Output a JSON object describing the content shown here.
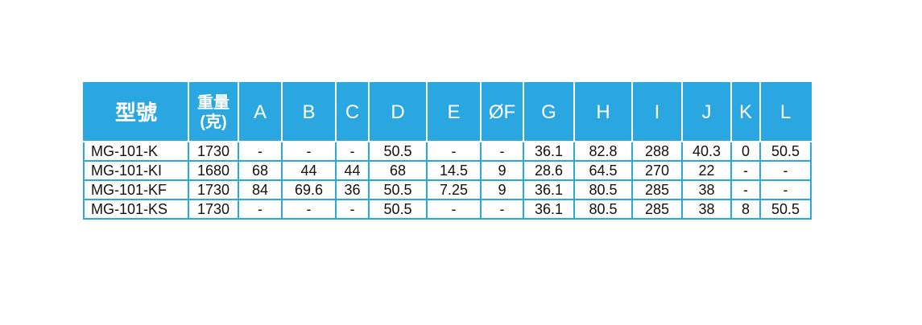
{
  "table": {
    "header": [
      "型號",
      "重量\n(克)",
      "A",
      "B",
      "C",
      "D",
      "E",
      "ØF",
      "G",
      "H",
      "I",
      "J",
      "K",
      "L"
    ],
    "rows": [
      [
        "MG-101-K",
        "1730",
        "-",
        "-",
        "-",
        "50.5",
        "-",
        "-",
        "36.1",
        "82.8",
        "288",
        "40.3",
        "0",
        "50.5"
      ],
      [
        "MG-101-KI",
        "1680",
        "68",
        "44",
        "44",
        "68",
        "14.5",
        "9",
        "28.6",
        "64.5",
        "270",
        "22",
        "-",
        "-"
      ],
      [
        "MG-101-KF",
        "1730",
        "84",
        "69.6",
        "36",
        "50.5",
        "7.25",
        "9",
        "36.1",
        "80.5",
        "285",
        "38",
        "-",
        "-"
      ],
      [
        "MG-101-KS",
        "1730",
        "-",
        "-",
        "-",
        "50.5",
        "-",
        "-",
        "36.1",
        "80.5",
        "285",
        "38",
        "8",
        "50.5"
      ]
    ]
  }
}
